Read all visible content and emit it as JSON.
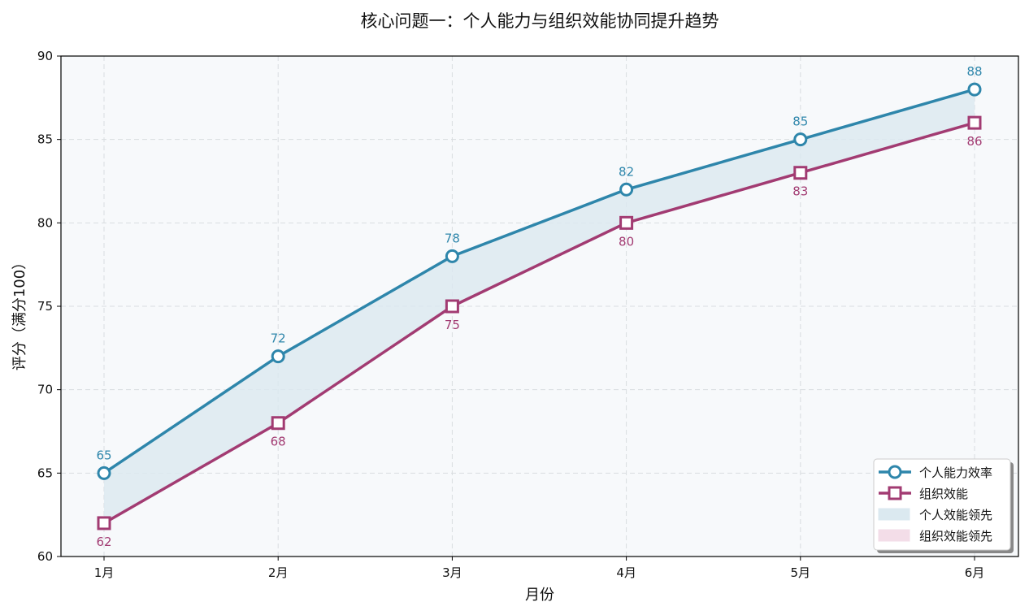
{
  "chart_data": {
    "type": "line",
    "title": "核心问题一：个人能力与组织效能协同提升趋势",
    "xlabel": "月份",
    "ylabel": "评分（满分100）",
    "categories": [
      "1月",
      "2月",
      "3月",
      "4月",
      "5月",
      "6月"
    ],
    "ylim": [
      60,
      90
    ],
    "yticks": [
      60,
      65,
      70,
      75,
      80,
      85,
      90
    ],
    "grid": true,
    "legend_position": "lower right",
    "series": [
      {
        "name": "个人能力效率",
        "values": [
          65,
          72,
          78,
          82,
          85,
          88
        ],
        "color": "#2e86ab",
        "marker": "circle"
      },
      {
        "name": "组织效能",
        "values": [
          62,
          68,
          75,
          80,
          83,
          86
        ],
        "color": "#a23b72",
        "marker": "square"
      }
    ],
    "fills": [
      {
        "name": "个人效能领先",
        "color": "#dbe9f0"
      },
      {
        "name": "组织效能领先",
        "color": "#f3dde8"
      }
    ]
  },
  "colors": {
    "plot_bg": "#f7f9fb",
    "grid": "#d9dde0",
    "axis": "#000000"
  }
}
